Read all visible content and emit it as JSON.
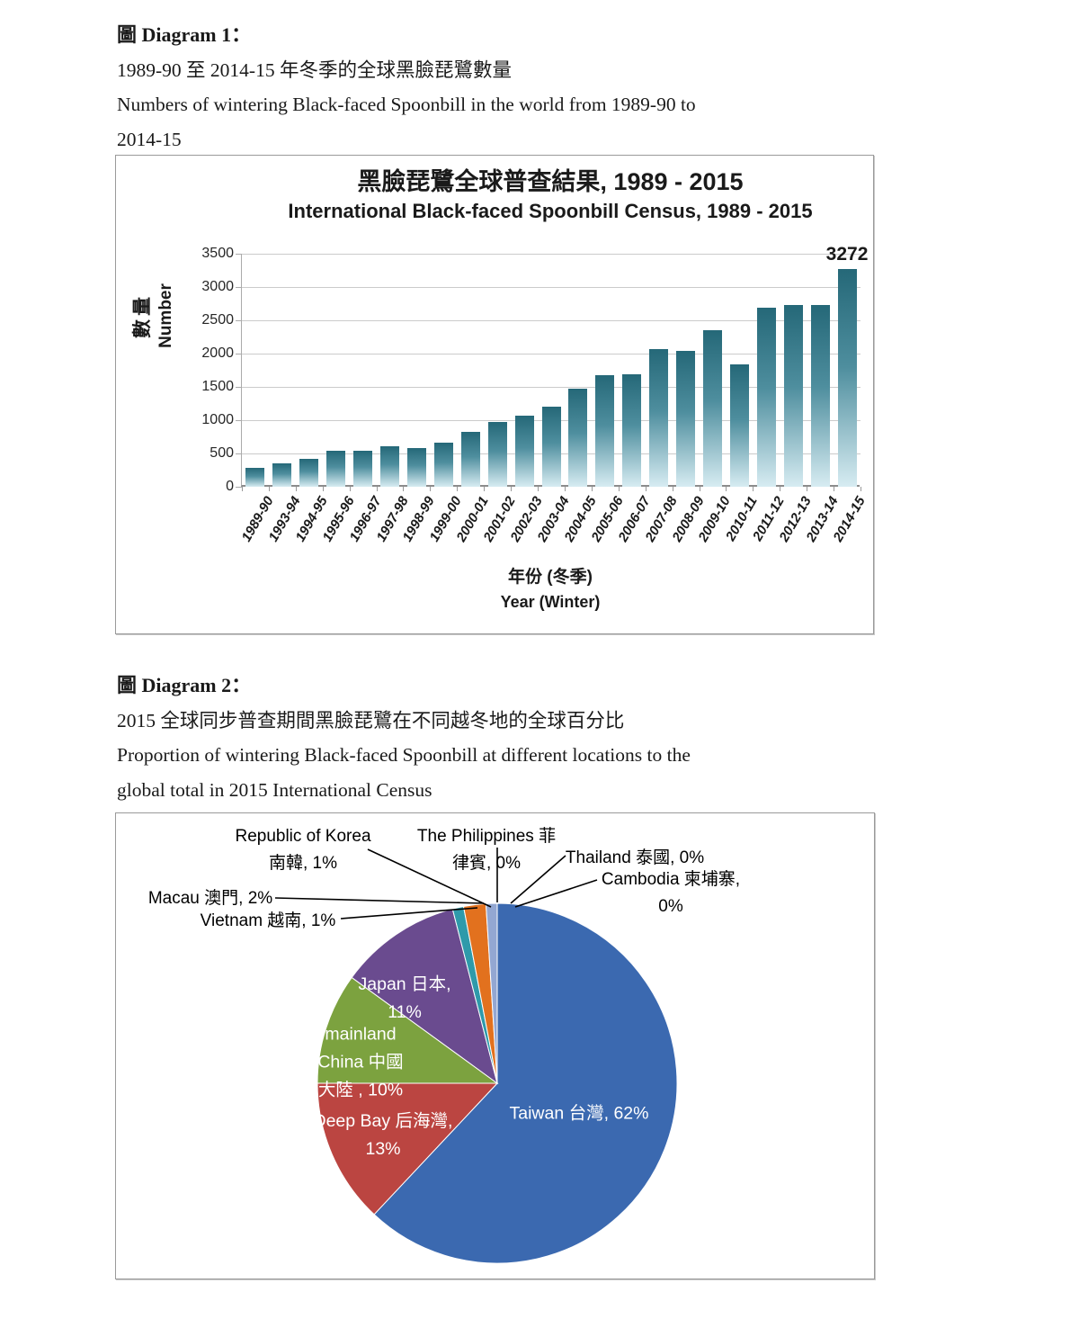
{
  "document": {
    "diagram1": {
      "heading": "圖 Diagram 1：",
      "caption_zh": "1989-90 至 2014-15 年冬季的全球黑臉琵鷺數量",
      "caption_en1": "Numbers of wintering Black-faced Spoonbill in the world from 1989-90 to",
      "caption_en2": "2014-15"
    },
    "diagram2": {
      "heading": "圖 Diagram 2：",
      "caption_zh": "2015 全球同步普查期間黑臉琵鷺在不同越冬地的全球百分比",
      "caption_en1": "Proportion of wintering Black-faced Spoonbill at different locations to the",
      "caption_en2": "global total in 2015 International Census"
    }
  },
  "chart_data": [
    {
      "type": "bar",
      "title": "黑臉琵鷺全球普查結果, 1989 - 2015",
      "subtitle": "International Black-faced Spoonbill Census, 1989 - 2015",
      "categories": [
        "1989-90",
        "1993-94",
        "1994-95",
        "1995-96",
        "1996-97",
        "1997-98",
        "1998-99",
        "1999-00",
        "2000-01",
        "2001-02",
        "2002-03",
        "2003-04",
        "2004-05",
        "2005-06",
        "2006-07",
        "2007-08",
        "2008-09",
        "2009-10",
        "2010-11",
        "2011-12",
        "2012-13",
        "2013-14",
        "2014-15"
      ],
      "values": [
        288,
        351,
        425,
        541,
        535,
        613,
        585,
        660,
        825,
        969,
        1069,
        1206,
        1475,
        1679,
        1695,
        2065,
        2041,
        2347,
        1839,
        2693,
        2725,
        2726,
        3272
      ],
      "xlabel_zh": "年份 (冬季)",
      "xlabel_en": "Year (Winter)",
      "ylabel_zh": "數量",
      "ylabel_en": "Number",
      "ylim": [
        0,
        3500
      ],
      "ytick_step": 500,
      "grid": true,
      "data_labels": [
        {
          "index": 22,
          "text": "3272"
        }
      ],
      "bar_color_top": "#256878",
      "bar_color_mid": "#4e8e9e",
      "bar_color_bottom": "#d7ecf2"
    },
    {
      "type": "pie",
      "start_angle": "top",
      "direction": "clockwise",
      "slices": [
        {
          "id": "taiwan",
          "value": 62,
          "color": "#3b69b0",
          "label_placement": "inside",
          "label_lines": [
            "Taiwan 台灣, 62%"
          ]
        },
        {
          "id": "deepbay",
          "value": 13,
          "color": "#bb4541",
          "label_placement": "inside",
          "label_lines": [
            "Deep Bay 后海灣,",
            "13%"
          ]
        },
        {
          "id": "china",
          "value": 10,
          "color": "#7ca23f",
          "label_placement": "inside",
          "label_lines": [
            "mainland",
            "China 中國",
            "大陸 , 10%"
          ]
        },
        {
          "id": "japan",
          "value": 11,
          "color": "#6a4b8f",
          "label_placement": "inside",
          "label_lines": [
            "Japan 日本,",
            "11%"
          ]
        },
        {
          "id": "vietnam",
          "value": 1,
          "color": "#2e9aaa",
          "label_placement": "outside",
          "label_lines": [
            "Vietnam 越南, 1%"
          ]
        },
        {
          "id": "macau",
          "value": 2,
          "color": "#e2711e",
          "label_placement": "outside",
          "label_lines": [
            "Macau 澳門, 2%"
          ]
        },
        {
          "id": "korea",
          "value": 1,
          "color": "#93a7d2",
          "label_placement": "outside",
          "label_lines": [
            "Republic of Korea",
            "南韓, 1%"
          ]
        },
        {
          "id": "philippines",
          "value": 0,
          "color": "#a5b8dc",
          "label_placement": "outside",
          "label_lines": [
            "The Philippines 菲",
            "律賓, 0%"
          ]
        },
        {
          "id": "thailand",
          "value": 0,
          "color": "#c0504d",
          "label_placement": "outside",
          "label_lines": [
            "Thailand 泰國, 0%"
          ]
        },
        {
          "id": "cambodia",
          "value": 0,
          "color": "#9bbb59",
          "label_placement": "outside",
          "label_lines": [
            "Cambodia 柬埔寨,",
            "0%"
          ]
        }
      ]
    }
  ]
}
